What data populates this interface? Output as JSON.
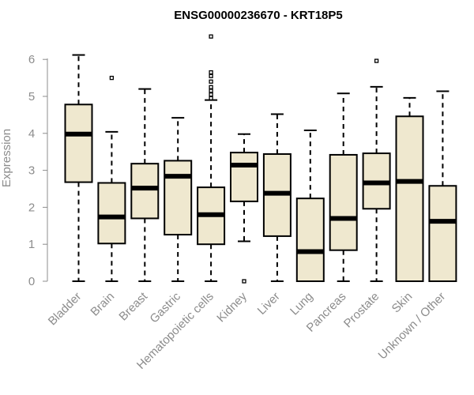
{
  "chart_data": {
    "type": "box",
    "title": "ENSG00000236670 - KRT18P5",
    "xlabel": "",
    "ylabel": "Expression",
    "ylim": [
      0,
      6.5
    ],
    "yticks": [
      0,
      1,
      2,
      3,
      4,
      5,
      6
    ],
    "box_fill": "#efe8cf",
    "box_stroke": "#000000",
    "categories": [
      "Bladder",
      "Brain",
      "Breast",
      "Gastric",
      "Hematopoietic cells",
      "Kidney",
      "Liver",
      "Lung",
      "Pancreas",
      "Prostate",
      "Skin",
      "Unknown / Other"
    ],
    "boxes": [
      {
        "category": "Bladder",
        "whisker_low": 0,
        "q1": 2.68,
        "median": 3.98,
        "q3": 4.78,
        "whisker_high": 6.12,
        "outliers": []
      },
      {
        "category": "Brain",
        "whisker_low": 0,
        "q1": 1.02,
        "median": 1.74,
        "q3": 2.66,
        "whisker_high": 4.04,
        "outliers": [
          5.5
        ]
      },
      {
        "category": "Breast",
        "whisker_low": 0,
        "q1": 1.7,
        "median": 2.52,
        "q3": 3.18,
        "whisker_high": 5.2,
        "outliers": []
      },
      {
        "category": "Gastric",
        "whisker_low": 0,
        "q1": 1.26,
        "median": 2.84,
        "q3": 3.26,
        "whisker_high": 4.42,
        "outliers": []
      },
      {
        "category": "Hematopoietic cells",
        "whisker_low": 0,
        "q1": 1.0,
        "median": 1.8,
        "q3": 2.54,
        "whisker_high": 4.9,
        "outliers": [
          4.95,
          5.05,
          5.15,
          5.25,
          5.4,
          5.55,
          5.65,
          6.62
        ]
      },
      {
        "category": "Kidney",
        "whisker_low": 1.08,
        "q1": 2.16,
        "median": 3.14,
        "q3": 3.48,
        "whisker_high": 3.98,
        "outliers": [
          0
        ]
      },
      {
        "category": "Liver",
        "whisker_low": 0,
        "q1": 1.22,
        "median": 2.38,
        "q3": 3.44,
        "whisker_high": 4.52,
        "outliers": []
      },
      {
        "category": "Lung",
        "whisker_low": 0,
        "q1": 0,
        "median": 0.8,
        "q3": 2.24,
        "whisker_high": 4.08,
        "outliers": []
      },
      {
        "category": "Pancreas",
        "whisker_low": 0,
        "q1": 0.84,
        "median": 1.7,
        "q3": 3.42,
        "whisker_high": 5.08,
        "outliers": []
      },
      {
        "category": "Prostate",
        "whisker_low": 0,
        "q1": 1.96,
        "median": 2.66,
        "q3": 3.46,
        "whisker_high": 5.26,
        "outliers": [
          5.96
        ]
      },
      {
        "category": "Skin",
        "whisker_low": 0,
        "q1": 0,
        "median": 2.7,
        "q3": 4.46,
        "whisker_high": 4.96,
        "outliers": []
      },
      {
        "category": "Unknown / Other",
        "whisker_low": 0,
        "q1": 0,
        "median": 1.62,
        "q3": 2.58,
        "whisker_high": 5.14,
        "outliers": []
      }
    ]
  }
}
